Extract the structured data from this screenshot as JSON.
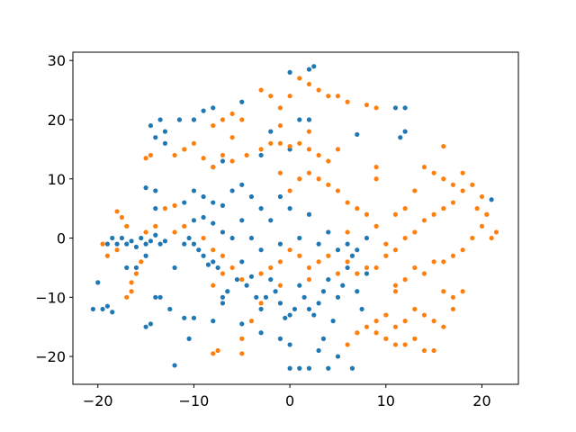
{
  "chart_data": {
    "type": "scatter",
    "xlim": [
      -22.6,
      23.8
    ],
    "ylim": [
      -24.7,
      31.4
    ],
    "xticks": [
      -20,
      -10,
      0,
      10,
      20
    ],
    "yticks": [
      -20,
      -10,
      0,
      10,
      20,
      30
    ],
    "series": [
      {
        "color": "#1f77b4",
        "x": [
          -20.5,
          -20,
          -19.5,
          -19,
          -18.5,
          -19,
          -18.5,
          -18,
          -17.5,
          -17,
          -16.5,
          -16,
          -15.5,
          -15,
          -14.5,
          -14,
          -13.5,
          -13,
          -15,
          -16,
          -17,
          -15,
          -14.5,
          -14,
          -13.5,
          -12.5,
          -12,
          -11,
          -10.5,
          -10,
          -9.5,
          -9,
          -8.5,
          -8,
          -7.5,
          -10,
          -11,
          -10.5,
          -12,
          -8,
          -7,
          -6.5,
          -5.5,
          -5,
          -4.5,
          -4,
          -3.5,
          -3,
          -2.5,
          -2,
          -1.5,
          -1,
          -0.5,
          0,
          0.5,
          1,
          1.5,
          2,
          2.5,
          3,
          3.5,
          4,
          4.5,
          5,
          5.5,
          6,
          6.5,
          7,
          7.5,
          8,
          3.5,
          3,
          2,
          1,
          0,
          4,
          6.5,
          5,
          0,
          -1,
          -3,
          -5,
          -7,
          -14,
          -15,
          -14,
          -11,
          -10,
          -9,
          -8,
          -7,
          -6,
          -5,
          -4,
          -3,
          -1,
          -10,
          -9,
          -8,
          -7,
          -6,
          -5,
          -4,
          -3,
          -2,
          -1,
          0,
          1,
          2,
          3,
          4,
          5,
          6,
          7,
          8,
          -14.5,
          -13.5,
          -13,
          -11.5,
          -10,
          -14,
          -13,
          -9,
          -8,
          -5,
          0,
          2,
          2.5,
          1,
          2,
          -2,
          7,
          11.5,
          12,
          12,
          11,
          21,
          -8,
          -7,
          -3,
          0
        ],
        "values": [
          -12,
          -7.5,
          -12,
          -11.5,
          -12.5,
          -1,
          0,
          -1,
          0,
          -1,
          -0.5,
          -1.5,
          0,
          -1,
          -0.5,
          0.5,
          -1,
          -0.5,
          -3,
          -5,
          -5,
          -15,
          -14.5,
          -10,
          -10,
          -12,
          -5,
          -1,
          0,
          -1,
          -2,
          -3,
          -4.5,
          -4,
          -5,
          -13.5,
          -13.5,
          -17,
          -21.5,
          -14,
          -10,
          -9,
          -7,
          -4,
          -8,
          -6.5,
          -10,
          -12,
          -10,
          -7,
          -9,
          -11,
          -13.5,
          -13,
          -12,
          -8,
          -10,
          -12,
          -13,
          -11,
          -9,
          -7,
          -14,
          -10,
          -8,
          -5,
          -3,
          -9,
          -12,
          -6,
          -17,
          -19,
          -22,
          -22,
          -22,
          -22,
          -22,
          -20,
          -18,
          -17,
          -16,
          -14.5,
          -11,
          5,
          8.5,
          8,
          6,
          8,
          7,
          6,
          5.5,
          8,
          9,
          7,
          5,
          7,
          3,
          3.5,
          2.5,
          1,
          0,
          3,
          0,
          -2,
          3,
          -1,
          5,
          0,
          4,
          -1,
          1,
          -2,
          -1,
          -2,
          0,
          19,
          20,
          18,
          20,
          20,
          17,
          16,
          21.5,
          22,
          23,
          28,
          28.5,
          29,
          20,
          20,
          18,
          17.5,
          17,
          18,
          22,
          22,
          6.5,
          12,
          13,
          14,
          15
        ]
      },
      {
        "color": "#ff7f0e",
        "x": [
          -19.5,
          -19,
          -18,
          -18,
          -17.5,
          -17,
          -16.5,
          -16.5,
          -17,
          -16,
          -15.5,
          -15,
          -14,
          -13,
          -12,
          -15,
          -14.5,
          -12,
          -11,
          -10,
          -9,
          -8,
          -6,
          -4.5,
          -3,
          -2,
          -1,
          0,
          1,
          2,
          3,
          4,
          5,
          -8,
          -7,
          -6,
          -5,
          -3,
          -2,
          -1,
          0,
          1,
          2,
          3,
          4,
          5,
          6,
          8,
          9,
          -1,
          2,
          -6,
          -7,
          -12,
          -11,
          -9,
          -8,
          -7,
          -6,
          -5,
          -3,
          -2,
          -1,
          0,
          1,
          2,
          3,
          4,
          5,
          6,
          7,
          8,
          9,
          10,
          11,
          11,
          12,
          13,
          14,
          15,
          16,
          17,
          18,
          19,
          20,
          21,
          21.5,
          20.5,
          19.5,
          20,
          18,
          17,
          16,
          15,
          14,
          13,
          16,
          18,
          19,
          17,
          16,
          15,
          14,
          13,
          12,
          11,
          10,
          9,
          8,
          7,
          6,
          5,
          4,
          3,
          2,
          1,
          0,
          -1,
          9,
          10,
          11,
          12,
          13,
          14,
          15,
          11,
          12,
          13,
          14,
          15,
          16,
          17,
          18,
          17,
          16,
          6,
          7,
          8,
          9,
          10,
          -5,
          -8,
          -7.5,
          -5,
          -4,
          -3,
          -8,
          -7,
          -1,
          2,
          6,
          11,
          12,
          9,
          9
        ],
        "values": [
          -1,
          -3,
          -2,
          4.5,
          3.5,
          2,
          -7.5,
          -9,
          -10,
          -6,
          -4,
          1,
          2,
          5,
          5.5,
          13.5,
          14,
          14,
          15,
          16,
          13.5,
          12,
          13,
          14,
          15,
          16,
          16,
          15.5,
          16,
          15,
          14,
          13,
          15,
          19,
          20,
          21,
          20,
          25,
          24,
          22,
          24,
          27,
          26,
          25,
          24,
          24,
          23,
          22.5,
          22,
          19,
          18,
          17,
          14,
          1,
          2,
          0,
          -2,
          -3,
          -5,
          -7,
          -6,
          -5,
          -4,
          -2,
          -3,
          -5,
          -4,
          -3,
          -6,
          -4,
          -6,
          -5,
          -5,
          -3,
          -8,
          -9,
          -7,
          -5,
          -6,
          -4,
          -4,
          -3,
          -2,
          0,
          2,
          0,
          1,
          4,
          5,
          7,
          8,
          9,
          10,
          11,
          12,
          8,
          15.5,
          11,
          9,
          6,
          5,
          4,
          3,
          1,
          0,
          -2,
          -1,
          2,
          4,
          5,
          6,
          8,
          9,
          10,
          11,
          10,
          8,
          11,
          -16,
          -17,
          -18,
          -18,
          -17,
          -19,
          -19,
          -15,
          -14,
          -12,
          -13,
          -14,
          -15,
          -12,
          -9,
          -10,
          -9,
          -18,
          -16,
          -15,
          -14,
          -13,
          -19.5,
          -19.5,
          -19,
          -17,
          -14,
          -11,
          -8,
          -6,
          -8,
          -7,
          1,
          4,
          5,
          12,
          10
        ]
      }
    ]
  }
}
